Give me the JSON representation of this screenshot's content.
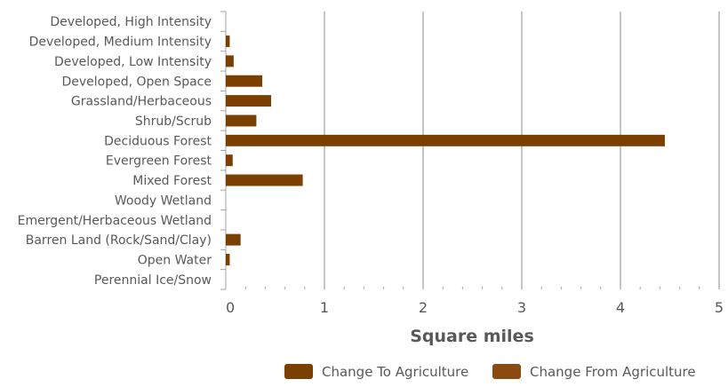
{
  "chart_data": {
    "type": "bar",
    "orientation": "horizontal",
    "categories": [
      "Developed, High Intensity",
      "Developed, Medium Intensity",
      "Developed, Low Intensity",
      "Developed, Open Space",
      "Grassland/Herbaceous",
      "Shrub/Scrub",
      "Deciduous Forest",
      "Evergreen Forest",
      "Mixed Forest",
      "Woody Wetland",
      "Emergent/Herbaceous Wetland",
      "Barren Land (Rock/Sand/Clay)",
      "Open Water",
      "Perennial Ice/Snow"
    ],
    "series": [
      {
        "name": "Change To Agriculture",
        "color": "#7B3F00",
        "values": [
          0,
          0.04,
          0.08,
          0.37,
          0.46,
          0.31,
          4.45,
          0.07,
          0.78,
          0,
          0,
          0.15,
          0.04,
          0
        ]
      },
      {
        "name": "Change From Agriculture",
        "color": "#8B4A0F",
        "values": [
          0,
          0,
          0,
          0,
          0,
          0,
          0,
          0,
          0,
          0,
          0,
          0,
          0,
          0
        ]
      }
    ],
    "xlabel": "Square miles",
    "ylabel": "",
    "xlim": [
      0,
      5
    ],
    "xticks": [
      "0",
      "1",
      "2",
      "3",
      "4",
      "5"
    ],
    "grid": "vertical-major",
    "legend_position": "bottom-right"
  }
}
